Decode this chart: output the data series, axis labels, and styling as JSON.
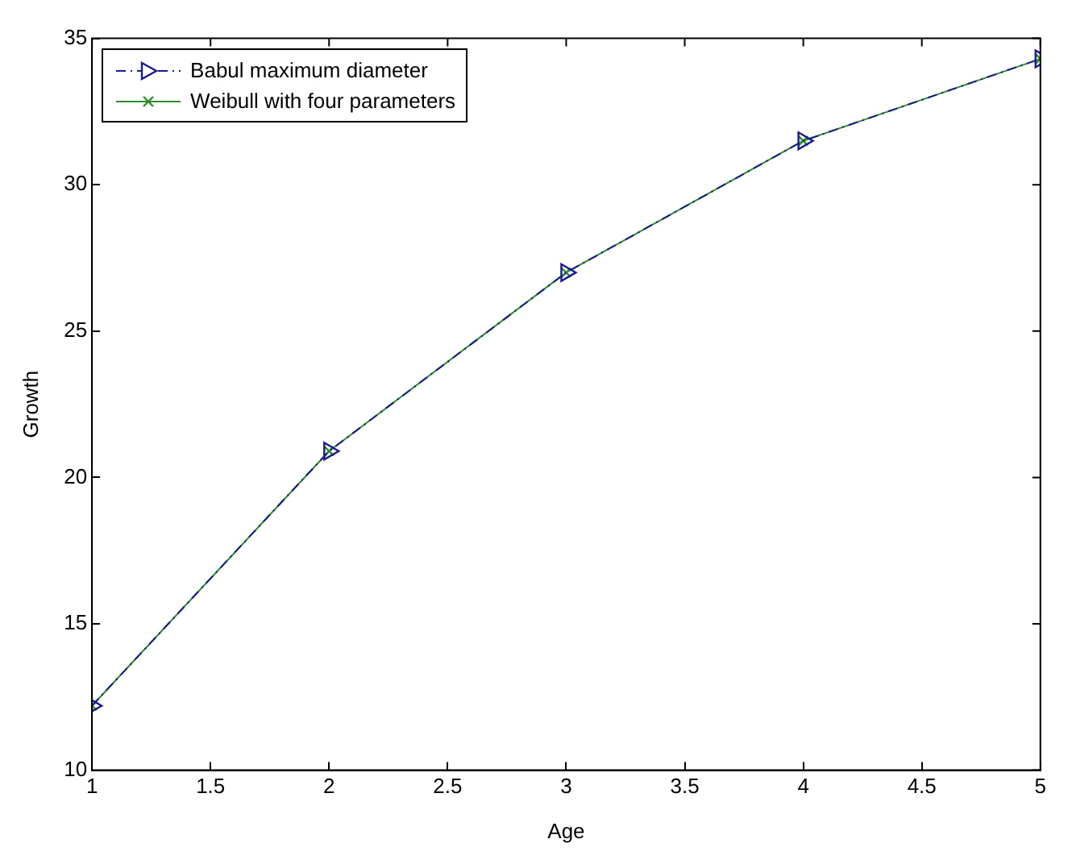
{
  "chart_data": {
    "type": "line",
    "xlabel": "Age",
    "ylabel": "Growth",
    "x": [
      1,
      2,
      3,
      4,
      5
    ],
    "series": [
      {
        "name": "Babul maximum diameter",
        "color": "#1a1a8c",
        "marker": "triangle",
        "line_style": "dashed",
        "values": [
          12.2,
          20.9,
          27.0,
          31.5,
          34.3
        ]
      },
      {
        "name": "Weibull with four parameters",
        "color": "#2e8b2e",
        "marker": "cross",
        "line_style": "solid",
        "values": [
          12.2,
          20.9,
          27.0,
          31.5,
          34.3
        ]
      }
    ],
    "xlim": [
      1,
      5
    ],
    "xticks": [
      1,
      1.5,
      2,
      2.5,
      3,
      3.5,
      4,
      4.5,
      5
    ],
    "ylim": [
      10,
      35
    ],
    "yticks": [
      10,
      15,
      20,
      25,
      30,
      35
    ],
    "grid": false,
    "legend": "top left"
  }
}
